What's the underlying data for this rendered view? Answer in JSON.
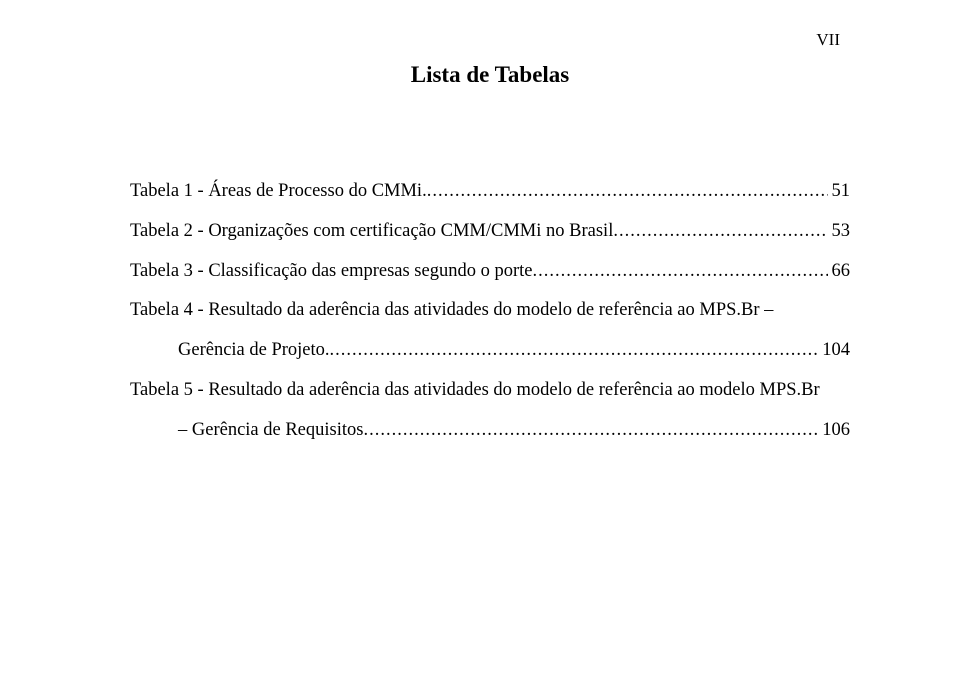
{
  "page_number": "VII",
  "title": "Lista de Tabelas",
  "typography": {
    "font_family": "Times New Roman",
    "title_fontsize": 23,
    "body_fontsize": 18.5,
    "line_height": 2.15,
    "text_color": "#000000",
    "background_color": "#ffffff"
  },
  "entries": {
    "e1": {
      "label": "Tabela 1 - Áreas de Processo do CMMi.",
      "page": "51"
    },
    "e2": {
      "label": "Tabela 2 - Organizações com certificação CMM/CMMi no Brasil",
      "page": "53"
    },
    "e3": {
      "label": "Tabela 3 - Classificação das empresas segundo o porte",
      "page": "66"
    },
    "e4": {
      "line1": "Tabela 4 - Resultado da aderência das atividades do modelo de referência ao MPS.Br –",
      "line2_label": "Gerência de Projeto.",
      "page": "104"
    },
    "e5": {
      "line1": "Tabela 5 - Resultado da aderência das atividades do modelo de referência ao modelo MPS.Br",
      "line2_label": "– Gerência de Requisitos",
      "page": "106"
    }
  }
}
